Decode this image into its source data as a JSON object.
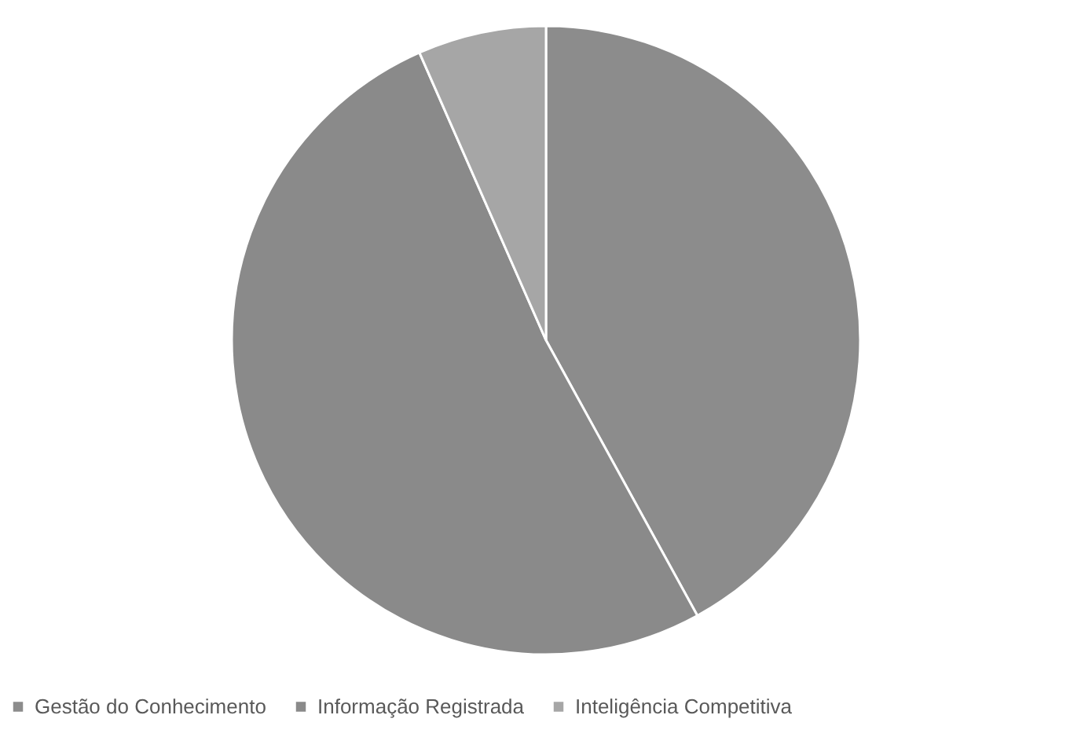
{
  "chart_data": {
    "type": "pie",
    "categories": [
      "Gestão do Conhecimento",
      "Informação Registrada",
      "Inteligência Competitiva"
    ],
    "values": [
      42,
      51.4,
      6.6
    ],
    "colors": [
      "#8c8c8c",
      "#8a8a8a",
      "#a6a6a6"
    ],
    "legend": "bottom"
  }
}
